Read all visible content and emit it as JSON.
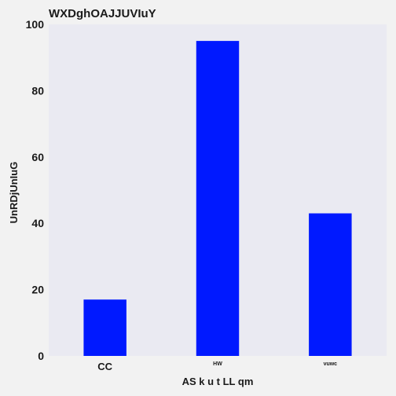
{
  "chart_data": {
    "type": "bar",
    "title": "WXDghOAJJUVIuY",
    "xlabel": "AS k u t LL qm",
    "ylabel": "UnRDjUnIuG",
    "categories": [
      "CC",
      "HW",
      "vuwc"
    ],
    "values": [
      17,
      95,
      43
    ],
    "ylim": [
      0,
      100
    ],
    "yticks": [
      0,
      20,
      40,
      60,
      80,
      100
    ],
    "grid": false,
    "legend": "none",
    "colors": {
      "bar": "#0019ff",
      "plot_background": "#eaeaf2",
      "figure_background": "#f2f2f2"
    }
  }
}
